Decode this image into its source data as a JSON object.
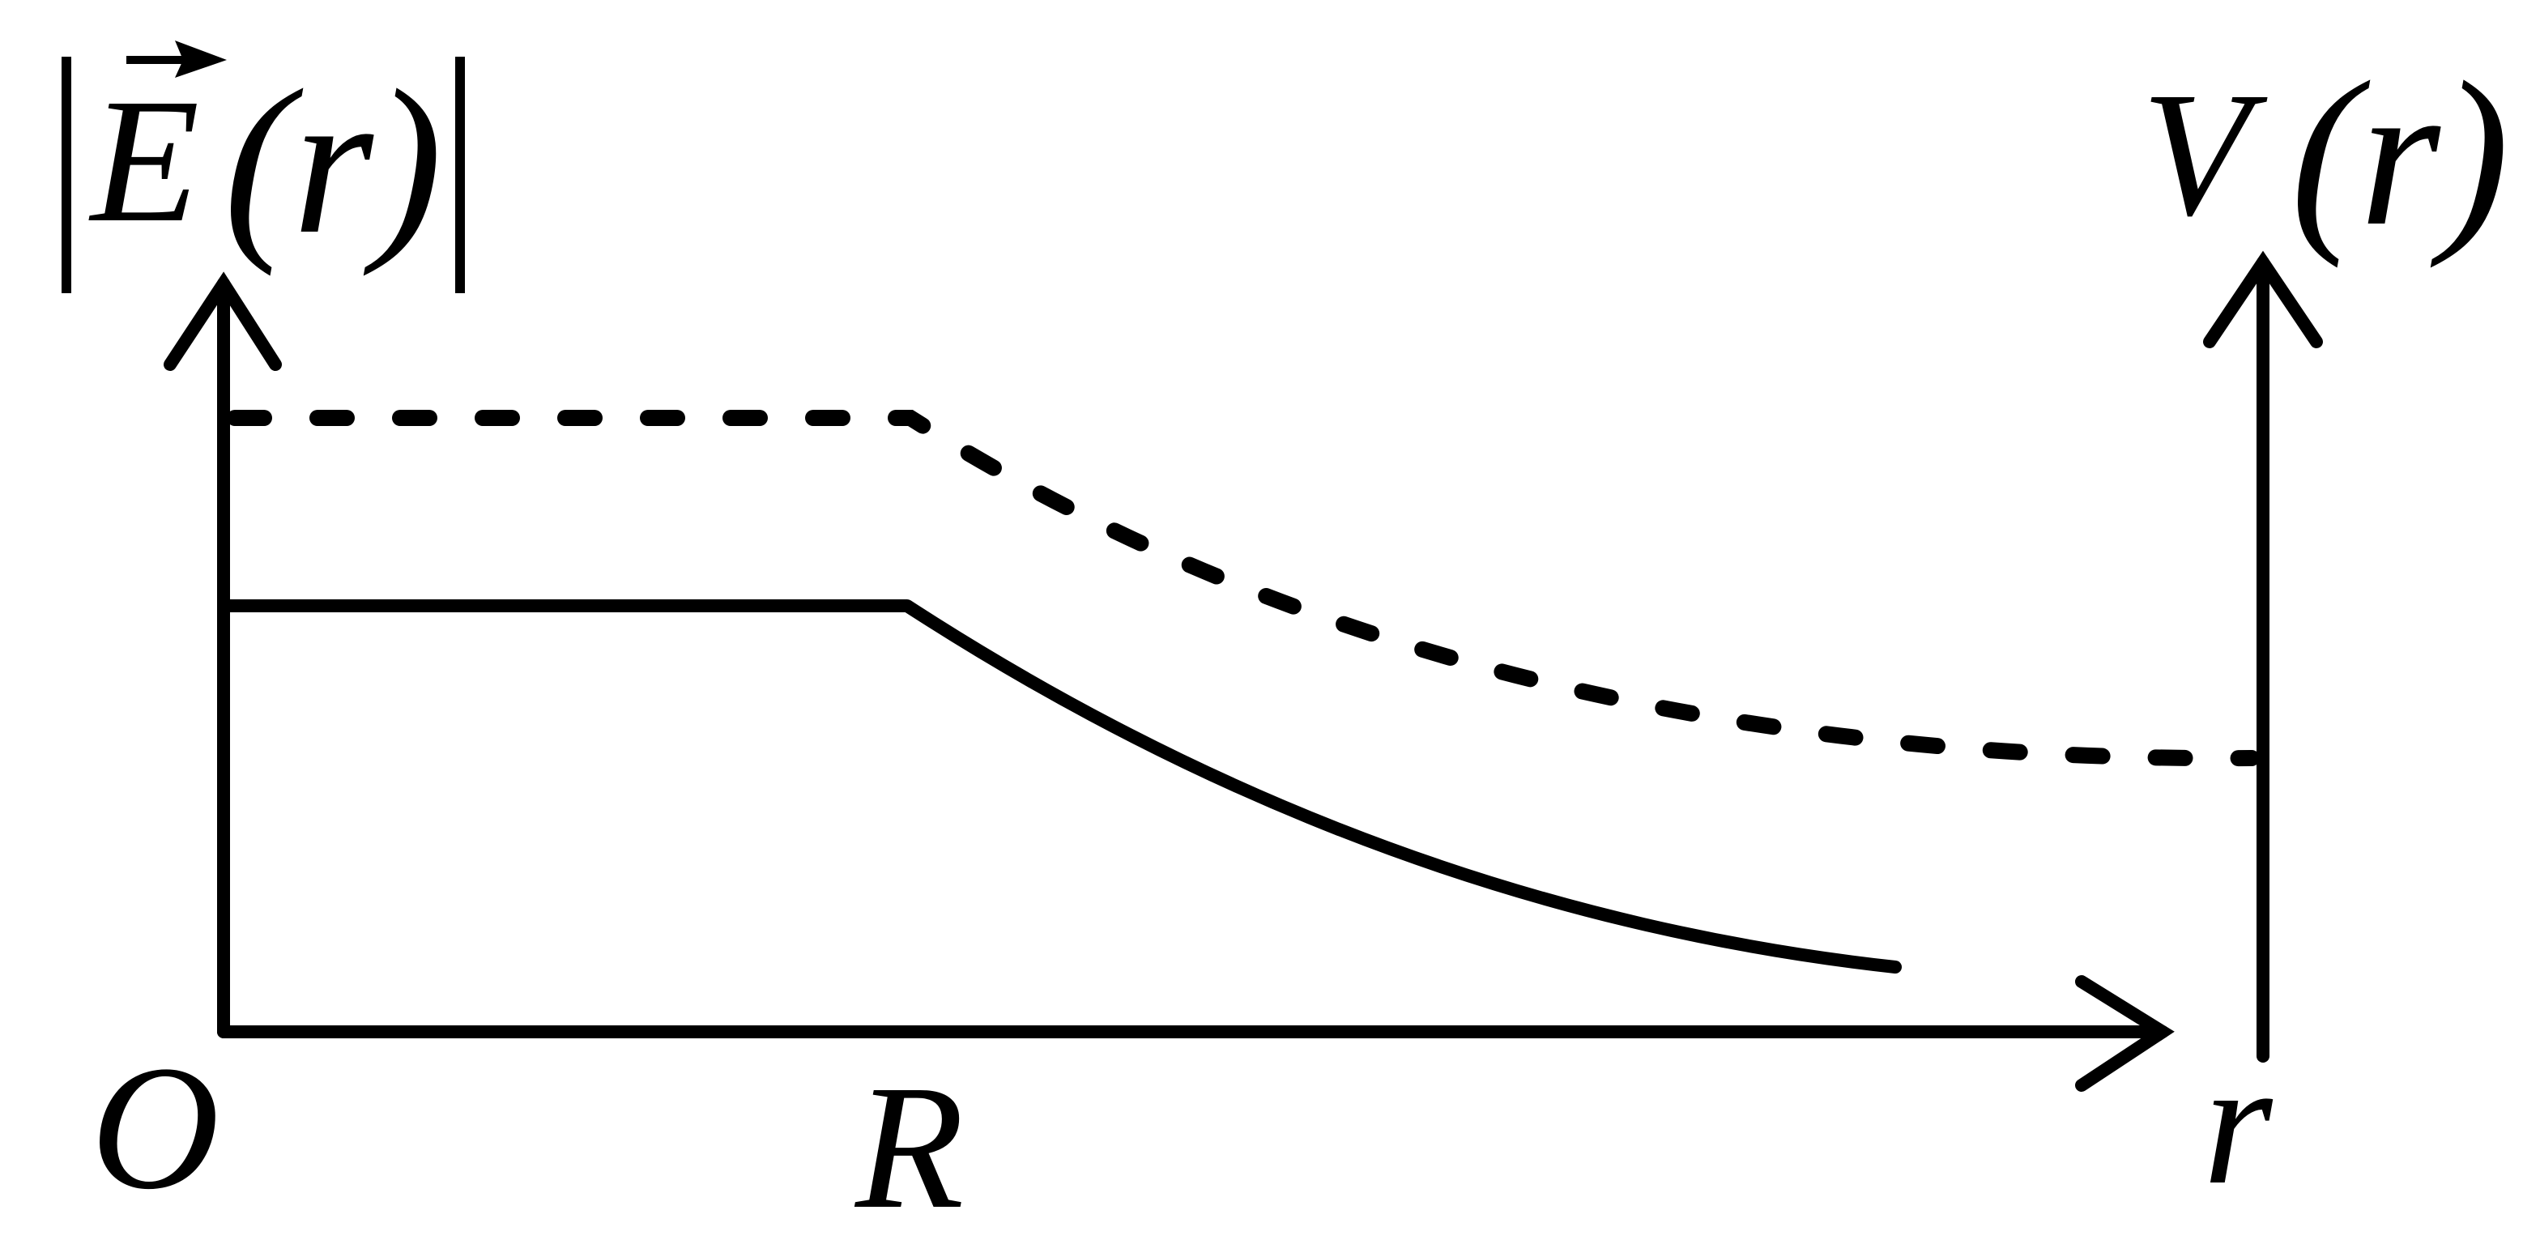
{
  "left_axis": {
    "symbol": "E",
    "argument": "(r)"
  },
  "right_axis": {
    "symbol": "V",
    "argument": "(r)"
  },
  "origin": "O",
  "x_marker": "R",
  "x_axis": "r"
}
